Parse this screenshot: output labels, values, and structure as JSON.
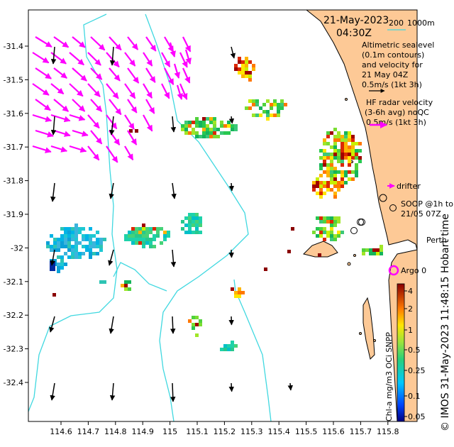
{
  "header": {
    "date": "21-May-2023",
    "time": "04:30Z",
    "depth_200": "200",
    "depth_1000": "1000m",
    "depth_line_color": "#40d8e0"
  },
  "legend": {
    "altimetry": [
      "Altimetric sealevel",
      "(0.1m contours)",
      "and velocity for",
      "21 May 04Z",
      "0.5m/s (1kt 3h)"
    ],
    "hf_radar": [
      "HF radar velocity",
      "(3-6h avg) noQC",
      "0.5m/s (1kt 3h)"
    ],
    "drifter": "drifter",
    "soop": [
      "SOOP @1h to",
      "21/05 07Z"
    ],
    "argo": "Argo 0",
    "place": "Perth",
    "hf_arrow_color": "#ff00ff",
    "alt_arrow_color": "#000000"
  },
  "colorbar": {
    "label": "Chl-a mg/m3 OCi SNPP",
    "ticks": [
      "4",
      "2",
      "1",
      "0.5",
      "0.25",
      "0.1",
      "0.05"
    ]
  },
  "credit": "© IMOS 31-May-2023 11:48:15 Hobart time",
  "axes": {
    "x_ticks": [
      "114.6",
      "114.7",
      "114.8",
      "114.9",
      "115",
      "115.1",
      "115.2",
      "115.3",
      "115.4",
      "115.5",
      "115.6",
      "115.7",
      "115.8"
    ],
    "y_ticks": [
      "-31.4",
      "-31.5",
      "-31.6",
      "-31.7",
      "-31.8",
      "-31.9",
      "-32",
      "-32.1",
      "-32.2",
      "-32.3",
      "-32.4"
    ]
  },
  "colors": {
    "land": "#fdc996",
    "contour": "#40d8e0"
  }
}
